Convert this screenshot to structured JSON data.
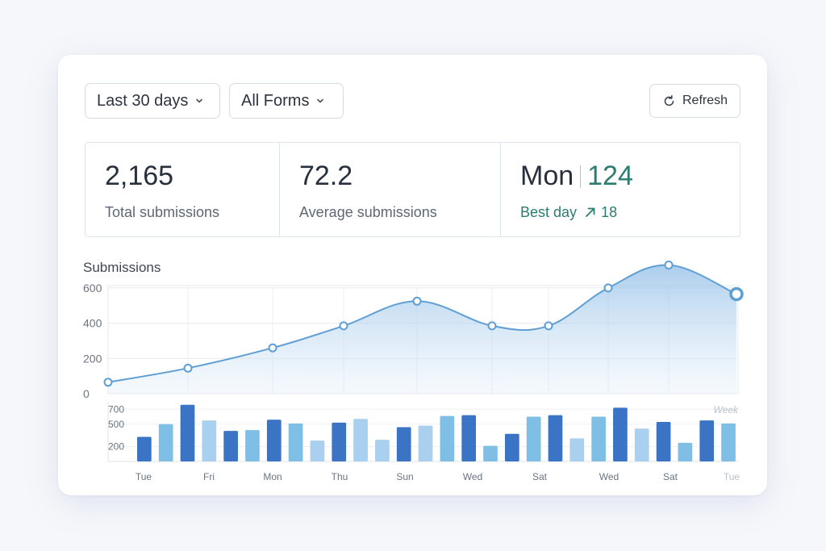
{
  "filters": {
    "range_label": "Last 30 days",
    "forms_label": "All Forms",
    "refresh_label": "Refresh"
  },
  "stats": {
    "total": {
      "value": "2,165",
      "label": "Total submissions"
    },
    "average": {
      "value": "72.2",
      "label": "Average submissions"
    },
    "best": {
      "day": "Mon",
      "value": "124",
      "label": "Best day",
      "delta": "18"
    }
  },
  "colors": {
    "line": "#5f9fd4",
    "accent_green": "#2a7d70",
    "bar_dark": "#3b74c4",
    "bar_light": "#a9d0ef"
  },
  "chart_data": {
    "type": "line",
    "title": "Submissions",
    "ylim": [
      0,
      650
    ],
    "yticks": [
      0,
      200,
      400,
      600
    ],
    "values": [
      65,
      145,
      260,
      385,
      525,
      385,
      385,
      600,
      730,
      565
    ],
    "grid": true,
    "bars": {
      "type": "bar",
      "legend_label": "Week",
      "yticks": [
        200,
        500,
        700
      ],
      "ylim": [
        0,
        800
      ],
      "x_labels": [
        "Tue",
        "Fri",
        "Mon",
        "Thu",
        "Sun",
        "Wed",
        "Sat",
        "Wed",
        "Sat",
        "Tue"
      ],
      "values": [
        {
          "v": 330,
          "shade": "d"
        },
        {
          "v": 500,
          "shade": "m"
        },
        {
          "v": 760,
          "shade": "d"
        },
        {
          "v": 550,
          "shade": "l"
        },
        {
          "v": 410,
          "shade": "d"
        },
        {
          "v": 420,
          "shade": "m"
        },
        {
          "v": 560,
          "shade": "d"
        },
        {
          "v": 510,
          "shade": "m"
        },
        {
          "v": 280,
          "shade": "l"
        },
        {
          "v": 520,
          "shade": "d"
        },
        {
          "v": 570,
          "shade": "l"
        },
        {
          "v": 290,
          "shade": "l"
        },
        {
          "v": 460,
          "shade": "d"
        },
        {
          "v": 480,
          "shade": "l"
        },
        {
          "v": 610,
          "shade": "m"
        },
        {
          "v": 620,
          "shade": "d"
        },
        {
          "v": 210,
          "shade": "m"
        },
        {
          "v": 370,
          "shade": "d"
        },
        {
          "v": 600,
          "shade": "m"
        },
        {
          "v": 620,
          "shade": "d"
        },
        {
          "v": 310,
          "shade": "l"
        },
        {
          "v": 600,
          "shade": "m"
        },
        {
          "v": 720,
          "shade": "d"
        },
        {
          "v": 440,
          "shade": "l"
        },
        {
          "v": 530,
          "shade": "d"
        },
        {
          "v": 250,
          "shade": "m"
        },
        {
          "v": 550,
          "shade": "d"
        },
        {
          "v": 510,
          "shade": "m"
        }
      ]
    }
  }
}
